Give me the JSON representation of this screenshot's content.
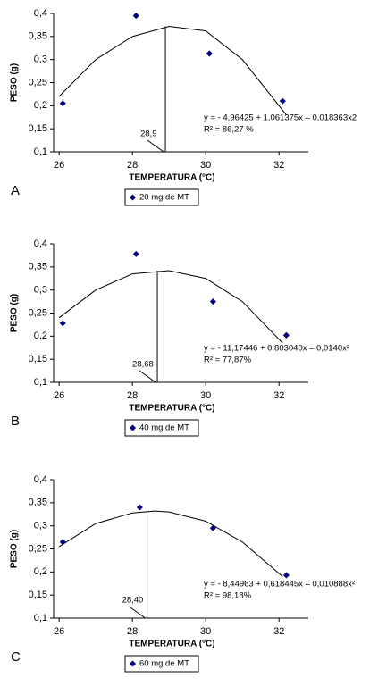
{
  "chart_data": [
    {
      "type": "scatter",
      "panel_label": "A",
      "x_label": "TEMPERATURA (°C)",
      "y_label": "PESO (g)",
      "series": [
        {
          "name": "20 mg de MT",
          "color": "#00007f",
          "x": [
            26.1,
            28.1,
            30.1,
            32.1
          ],
          "values": [
            0.205,
            0.395,
            0.313,
            0.21
          ]
        }
      ],
      "curve": {
        "x": [
          26,
          27,
          28,
          29,
          30,
          31,
          32.2
        ],
        "values": [
          0.22,
          0.3,
          0.35,
          0.372,
          0.362,
          0.3,
          0.18
        ]
      },
      "vline": {
        "value": 28.9,
        "label": "28,9"
      },
      "equation": [
        "y = - 4,96425 + 1,061375x – 0,018363x2",
        "R² = 86,27 %"
      ],
      "xlim": [
        25.85,
        32.8
      ],
      "ylim": [
        0.1,
        0.4
      ],
      "xticks": [
        26,
        28,
        30,
        32
      ],
      "yticks": [
        {
          "value": 0.1,
          "label": "0,1"
        },
        {
          "value": 0.15,
          "label": "0,15"
        },
        {
          "value": 0.2,
          "label": "0,2"
        },
        {
          "value": 0.25,
          "label": "0,25"
        },
        {
          "value": 0.3,
          "label": "0,3"
        },
        {
          "value": 0.35,
          "label": "0,35"
        },
        {
          "value": 0.4,
          "label": "0,4"
        }
      ]
    },
    {
      "type": "scatter",
      "panel_label": "B",
      "x_label": "TEMPERATURA (°C)",
      "y_label": "PESO (g)",
      "series": [
        {
          "name": "40 mg de MT",
          "color": "#00007f",
          "x": [
            26.1,
            28.1,
            30.2,
            32.2
          ],
          "values": [
            0.228,
            0.378,
            0.275,
            0.202
          ]
        }
      ],
      "curve": {
        "x": [
          26,
          27,
          28,
          29,
          30,
          31,
          32.1
        ],
        "values": [
          0.24,
          0.3,
          0.335,
          0.342,
          0.325,
          0.275,
          0.185
        ]
      },
      "vline": {
        "value": 28.68,
        "label": "28,68"
      },
      "equation": [
        "y = - 11,17446 + 0,803040x – 0,0140x²",
        "R² = 77,87%"
      ],
      "xlim": [
        25.85,
        32.8
      ],
      "ylim": [
        0.1,
        0.4
      ],
      "xticks": [
        26,
        28,
        30,
        32
      ],
      "yticks": [
        {
          "value": 0.1,
          "label": "0,1"
        },
        {
          "value": 0.15,
          "label": "0,15"
        },
        {
          "value": 0.2,
          "label": "0,2"
        },
        {
          "value": 0.25,
          "label": "0,25"
        },
        {
          "value": 0.3,
          "label": "0,3"
        },
        {
          "value": 0.35,
          "label": "0,35"
        },
        {
          "value": 0.4,
          "label": "0,4"
        }
      ]
    },
    {
      "type": "scatter",
      "panel_label": "C",
      "x_label": "TEMPERATURA (°C)",
      "y_label": "PESO (g)",
      "series": [
        {
          "name": "60 mg de MT",
          "color": "#00007f",
          "x": [
            26.1,
            28.2,
            30.2,
            32.2
          ],
          "values": [
            0.265,
            0.34,
            0.295,
            0.193
          ]
        }
      ],
      "curve": {
        "x": [
          26,
          27,
          28,
          28.6,
          29,
          30,
          31,
          32.1
        ],
        "values": [
          0.255,
          0.305,
          0.328,
          0.332,
          0.33,
          0.31,
          0.265,
          0.19
        ]
      },
      "vline": {
        "value": 28.4,
        "label": "28,40"
      },
      "equation": [
        "y = - 8,44963 + 0,618445x – 0,010888x²",
        "R² = 98,18%"
      ],
      "xlim": [
        25.85,
        32.8
      ],
      "ylim": [
        0.1,
        0.4
      ],
      "xticks": [
        26,
        28,
        30,
        32
      ],
      "yticks": [
        {
          "value": 0.1,
          "label": "0,1"
        },
        {
          "value": 0.15,
          "label": "0,15"
        },
        {
          "value": 0.2,
          "label": "0,2"
        },
        {
          "value": 0.25,
          "label": "0,25"
        },
        {
          "value": 0.3,
          "label": "0,3"
        },
        {
          "value": 0.35,
          "label": "0,35"
        },
        {
          "value": 0.4,
          "label": "0,4"
        }
      ]
    }
  ]
}
